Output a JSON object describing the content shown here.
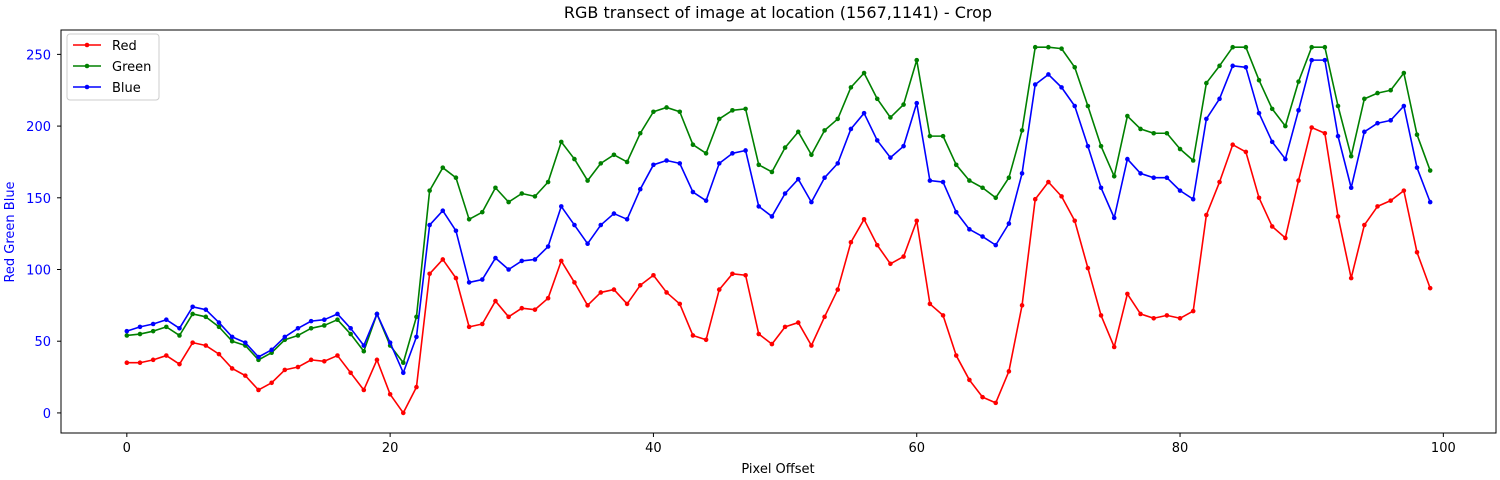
{
  "chart_data": {
    "type": "line",
    "title": "RGB transect of image at location (1567,1141) - Crop",
    "xlabel": "Pixel Offset",
    "ylabel": "Red Green Blue",
    "xlim": [
      -5,
      104
    ],
    "ylim": [
      -14,
      267
    ],
    "xticks": [
      0,
      20,
      40,
      60,
      80,
      100
    ],
    "yticks": [
      0,
      50,
      100,
      150,
      200,
      250
    ],
    "grid": false,
    "legend_position": "top-left",
    "series": [
      {
        "name": "Red",
        "color": "#ff0000",
        "values": [
          35,
          35,
          37,
          40,
          34,
          49,
          47,
          41,
          31,
          26,
          16,
          21,
          30,
          32,
          37,
          36,
          40,
          28,
          16,
          37,
          13,
          0,
          18,
          97,
          107,
          94,
          60,
          62,
          78,
          67,
          73,
          72,
          80,
          106,
          91,
          75,
          84,
          86,
          76,
          89,
          96,
          84,
          76,
          54,
          51,
          86,
          97,
          96,
          55,
          48,
          60,
          63,
          47,
          67,
          86,
          119,
          135,
          117,
          104,
          109,
          134,
          76,
          68,
          40,
          23,
          11,
          7,
          29,
          75,
          149,
          161,
          151,
          134,
          101,
          68,
          46,
          83,
          69,
          66,
          68,
          66,
          71,
          138,
          161,
          187,
          182,
          150,
          130,
          122,
          162,
          199,
          195,
          137,
          94,
          131,
          144,
          148,
          155,
          112,
          87
        ]
      },
      {
        "name": "Green",
        "color": "#008000",
        "values": [
          54,
          55,
          57,
          60,
          54,
          69,
          67,
          60,
          50,
          47,
          37,
          42,
          51,
          54,
          59,
          61,
          65,
          55,
          43,
          69,
          47,
          35,
          67,
          155,
          171,
          164,
          135,
          140,
          157,
          147,
          153,
          151,
          161,
          189,
          177,
          162,
          174,
          180,
          175,
          195,
          210,
          213,
          210,
          187,
          181,
          205,
          211,
          212,
          173,
          168,
          185,
          196,
          180,
          197,
          205,
          227,
          237,
          219,
          206,
          215,
          246,
          193,
          193,
          173,
          162,
          157,
          150,
          164,
          197,
          255,
          255,
          254,
          241,
          214,
          186,
          165,
          207,
          198,
          195,
          195,
          184,
          176,
          230,
          242,
          255,
          255,
          232,
          212,
          200,
          231,
          255,
          255,
          214,
          179,
          219,
          223,
          225,
          237,
          194,
          169
        ]
      },
      {
        "name": "Blue",
        "color": "#0000ff",
        "values": [
          57,
          60,
          62,
          65,
          59,
          74,
          72,
          63,
          53,
          49,
          39,
          44,
          53,
          59,
          64,
          65,
          69,
          59,
          47,
          69,
          49,
          28,
          53,
          131,
          141,
          127,
          91,
          93,
          108,
          100,
          106,
          107,
          116,
          144,
          131,
          118,
          131,
          139,
          135,
          156,
          173,
          176,
          174,
          154,
          148,
          174,
          181,
          183,
          144,
          137,
          153,
          163,
          147,
          164,
          174,
          198,
          209,
          190,
          178,
          186,
          216,
          162,
          161,
          140,
          128,
          123,
          117,
          132,
          167,
          229,
          236,
          227,
          214,
          186,
          157,
          136,
          177,
          167,
          164,
          164,
          155,
          149,
          205,
          219,
          242,
          241,
          209,
          189,
          177,
          211,
          246,
          246,
          193,
          157,
          196,
          202,
          204,
          214,
          171,
          147
        ]
      }
    ]
  }
}
